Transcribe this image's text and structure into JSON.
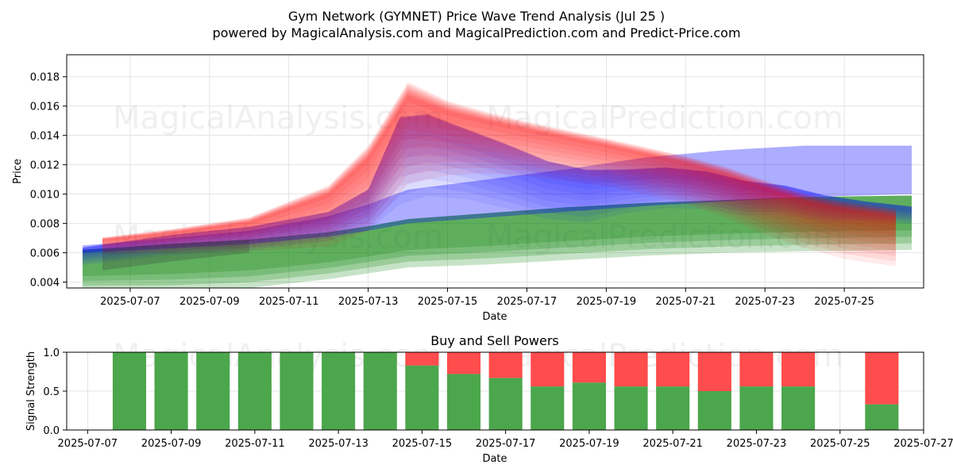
{
  "chart_data": [
    {
      "type": "area",
      "title": "Gym Network (GYMNET) Price Wave Trend Analysis (Jul 25 )",
      "subtitle": "powered by MagicalAnalysis.com and MagicalPrediction.com and Predict-Price.com",
      "xlabel": "Date",
      "ylabel": "Price",
      "xlim_days": [
        5.4,
        27.0
      ],
      "ylim": [
        0.0036,
        0.0195
      ],
      "grid": true,
      "x_ticks": [
        "2025-07-07",
        "2025-07-09",
        "2025-07-11",
        "2025-07-13",
        "2025-07-15",
        "2025-07-17",
        "2025-07-19",
        "2025-07-21",
        "2025-07-23",
        "2025-07-25"
      ],
      "x_tick_days": [
        7,
        9,
        11,
        13,
        15,
        17,
        19,
        21,
        23,
        25
      ],
      "y_ticks": [
        "0.004",
        "0.006",
        "0.008",
        "0.010",
        "0.012",
        "0.014",
        "0.016",
        "0.018"
      ],
      "y_tick_values": [
        0.004,
        0.006,
        0.008,
        0.01,
        0.012,
        0.014,
        0.016,
        0.018
      ],
      "watermarks": [
        "MagicalAnalysis.com",
        "MagicalPrediction.com",
        "MagicalAnalysis.com",
        "MagicalPrediction.com"
      ],
      "series": [
        {
          "name": "red-waves",
          "color": "#ff0000",
          "days": [
            6.3,
            8,
            10,
            12,
            13,
            14,
            15,
            16,
            17,
            18,
            19,
            20,
            21,
            22,
            23,
            24,
            25,
            26.3
          ],
          "center": [
            0.0067,
            0.0071,
            0.0077,
            0.0093,
            0.0115,
            0.0155,
            0.0148,
            0.0143,
            0.0138,
            0.0133,
            0.0128,
            0.0122,
            0.0116,
            0.0108,
            0.0098,
            0.0089,
            0.0083,
            0.0078
          ],
          "halfwidth": [
            0.0005,
            0.0007,
            0.001,
            0.0018,
            0.0025,
            0.003,
            0.0022,
            0.0018,
            0.0016,
            0.0015,
            0.0014,
            0.0014,
            0.0014,
            0.0015,
            0.0016,
            0.0016,
            0.0017,
            0.0017
          ]
        },
        {
          "name": "blue-waves",
          "color": "#0000ff",
          "days": [
            5.8,
            8,
            10,
            12,
            13,
            13.8,
            14.5,
            15.5,
            16.5,
            17.5,
            18.5,
            19.5,
            20.5,
            21.5,
            22.5,
            23.5,
            24.5,
            25.5,
            26.7
          ],
          "center": [
            0.006,
            0.0068,
            0.0073,
            0.0082,
            0.0095,
            0.0135,
            0.0138,
            0.013,
            0.0121,
            0.0111,
            0.0106,
            0.0108,
            0.011,
            0.0108,
            0.0102,
            0.01,
            0.0094,
            0.0091,
            0.0088
          ],
          "halfwidth": [
            0.0006,
            0.0007,
            0.0008,
            0.001,
            0.0014,
            0.003,
            0.0028,
            0.0024,
            0.0022,
            0.002,
            0.0018,
            0.0015,
            0.0014,
            0.0013,
            0.0012,
            0.001,
            0.0009,
            0.0007,
            0.0006
          ]
        },
        {
          "name": "blue-band",
          "color": "#0000ff",
          "days": [
            5.8,
            8,
            10,
            12,
            13,
            14,
            16,
            18,
            20,
            22,
            24,
            26.7
          ],
          "upper": [
            0.0065,
            0.007,
            0.0075,
            0.0085,
            0.0093,
            0.0103,
            0.011,
            0.0117,
            0.0125,
            0.013,
            0.0133,
            0.0133
          ],
          "lower": [
            0.006,
            0.0063,
            0.0066,
            0.0071,
            0.0075,
            0.008,
            0.0084,
            0.0088,
            0.0092,
            0.0095,
            0.0098,
            0.01
          ]
        },
        {
          "name": "green-band",
          "color": "#008000",
          "days": [
            5.8,
            8,
            10,
            12,
            13,
            14,
            16,
            18,
            20,
            22,
            24,
            26.7
          ],
          "upper": [
            0.0062,
            0.0066,
            0.0069,
            0.0074,
            0.0078,
            0.0083,
            0.0087,
            0.0091,
            0.0094,
            0.0096,
            0.0098,
            0.0099
          ],
          "lower": [
            0.0034,
            0.0034,
            0.0036,
            0.0042,
            0.0046,
            0.005,
            0.0052,
            0.0055,
            0.0058,
            0.006,
            0.0061,
            0.0062
          ]
        }
      ]
    },
    {
      "type": "bar",
      "title": "Buy and Sell Powers",
      "xlabel": "Date",
      "ylabel": "Signal Strength",
      "xlim_days": [
        6.5,
        27.0
      ],
      "ylim": [
        0,
        1.0
      ],
      "grid": true,
      "x_ticks": [
        "2025-07-07",
        "2025-07-09",
        "2025-07-11",
        "2025-07-13",
        "2025-07-15",
        "2025-07-17",
        "2025-07-19",
        "2025-07-21",
        "2025-07-23",
        "2025-07-25",
        "2025-07-27"
      ],
      "x_tick_days": [
        7,
        9,
        11,
        13,
        15,
        17,
        19,
        21,
        23,
        25,
        27
      ],
      "y_ticks": [
        "0.0",
        "0.5",
        "1.0"
      ],
      "y_tick_values": [
        0.0,
        0.5,
        1.0
      ],
      "watermarks": [
        "MagicalAnalysis.com",
        "MagicalPrediction.com"
      ],
      "bar_days": [
        8,
        9,
        10,
        11,
        12,
        13,
        14,
        15,
        16,
        17,
        18,
        19,
        20,
        21,
        22,
        23,
        24,
        26
      ],
      "buy": [
        1.0,
        1.0,
        1.0,
        1.0,
        1.0,
        1.0,
        1.0,
        0.83,
        0.72,
        0.67,
        0.56,
        0.61,
        0.56,
        0.56,
        0.5,
        0.56,
        0.56,
        0.33
      ],
      "sell": [
        0.0,
        0.0,
        0.0,
        0.0,
        0.0,
        0.0,
        0.0,
        0.17,
        0.28,
        0.33,
        0.44,
        0.39,
        0.44,
        0.44,
        0.5,
        0.44,
        0.44,
        0.67
      ],
      "buy_color": "#4ca64c",
      "sell_color": "#ff4c4c"
    }
  ]
}
